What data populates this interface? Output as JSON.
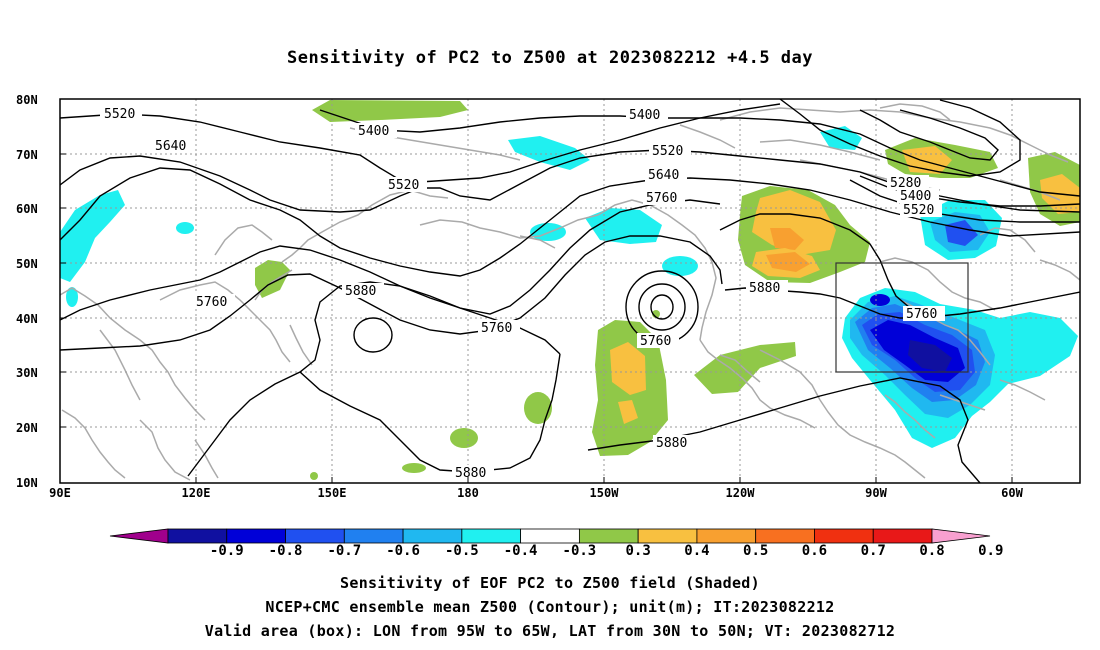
{
  "title": "Sensitivity of PC2 to Z500 at 2023082212 +4.5 day",
  "lat_labels": [
    "80N",
    "70N",
    "60N",
    "50N",
    "40N",
    "30N",
    "20N",
    "10N"
  ],
  "lon_labels": [
    "90E",
    "120E",
    "150E",
    "180",
    "150W",
    "120W",
    "90W",
    "60W"
  ],
  "contour_labels": {
    "c5520_w": "5520",
    "c5640_w": "5640",
    "c5400_n": "5400",
    "c5520_c": "5520",
    "c5760_w": "5760",
    "c5880_w": "5880",
    "c5760_c": "5760",
    "c5400_e": "5400",
    "c5520_e": "5520",
    "c5640_e": "5640",
    "c5760_e": "5760",
    "c5760_low": "5760",
    "c5880_e": "5880",
    "c5280_ne": "5280",
    "c5400_ne": "5400",
    "c5520_ne": "5520",
    "c5760_box": "5760",
    "c5880_s": "5880",
    "c5880_sw": "5880"
  },
  "colorbar": {
    "labels": [
      "-0.9",
      "-0.8",
      "-0.7",
      "-0.6",
      "-0.5",
      "-0.4",
      "-0.3",
      "0.3",
      "0.4",
      "0.5",
      "0.6",
      "0.7",
      "0.8",
      "0.9"
    ],
    "colors": [
      "#a0008c",
      "#1010a0",
      "#0000d8",
      "#2050f0",
      "#2080f0",
      "#20b8f0",
      "#20f0f0",
      "#ffffff",
      "#90c848",
      "#f8c040",
      "#f8a030",
      "#f87020",
      "#f03010",
      "#e81818",
      "#f8a0d0"
    ]
  },
  "captions": [
    "Sensitivity of EOF PC2 to Z500 field (Shaded)",
    "NCEP+CMC ensemble mean Z500 (Contour); unit(m); IT:2023082212",
    "Valid area (box): LON from 95W to 65W, LAT from 30N to 50N; VT: 2023082712"
  ]
}
